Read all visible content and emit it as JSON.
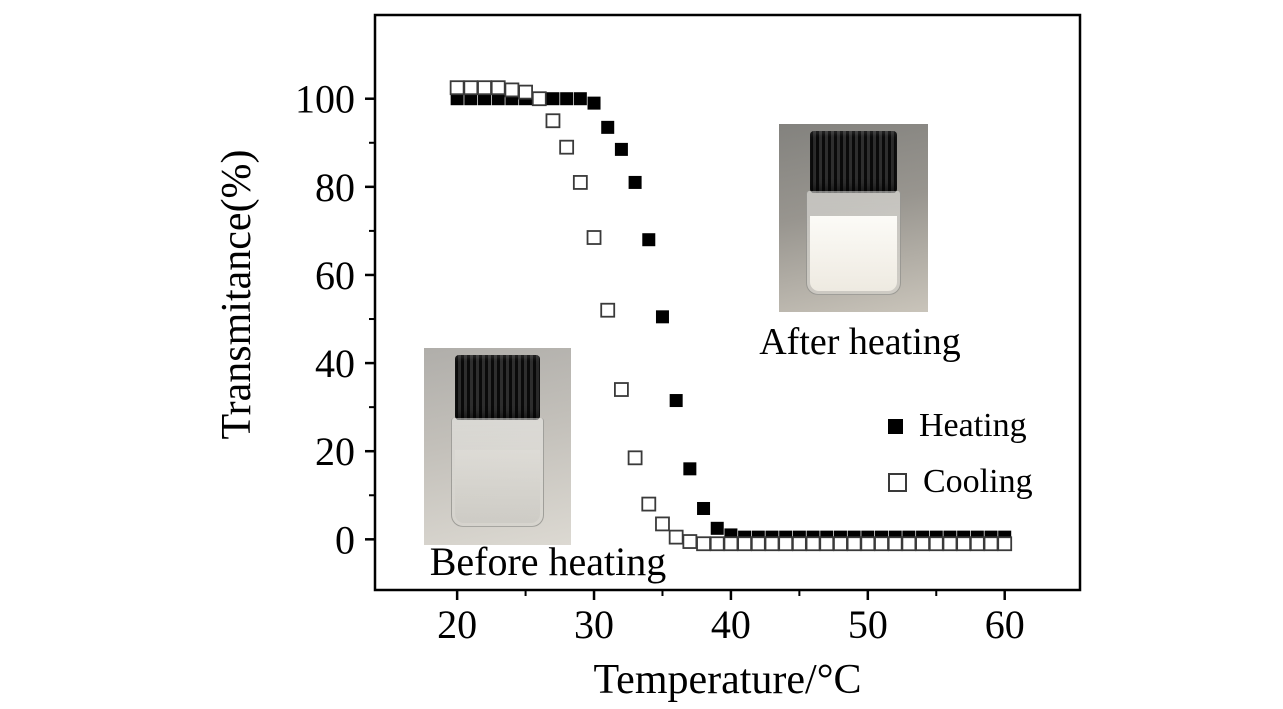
{
  "figure": {
    "axes": {
      "x_title": "Temperature/°C",
      "y_title": "Transmitance(%)"
    },
    "legend": {
      "items": [
        {
          "label": "Heating",
          "marker": "filled-square"
        },
        {
          "label": "Cooling",
          "marker": "open-square"
        }
      ]
    },
    "annotations": {
      "after_heating": "After heating",
      "before_heating": "Before heating"
    },
    "colors": {
      "heating_marker": "#000000",
      "cooling_marker_stroke": "#3a3a3a",
      "axis": "#000000"
    }
  },
  "chart_data": {
    "type": "scatter",
    "title": "",
    "xlabel": "Temperature/°C",
    "ylabel": "Transmitance(%)",
    "xlim": [
      14,
      65.5
    ],
    "ylim": [
      -11.5,
      119
    ],
    "x_ticks": [
      20,
      30,
      40,
      50,
      60
    ],
    "x_minor_ticks": [
      25,
      35,
      45,
      55
    ],
    "y_ticks": [
      0,
      20,
      40,
      60,
      80,
      100
    ],
    "y_minor_ticks": [
      10,
      30,
      50,
      70,
      90
    ],
    "grid": false,
    "legend_position": "inside-right-middle",
    "series": [
      {
        "name": "Heating",
        "marker": "filled-square",
        "color": "#000000",
        "x": [
          20,
          21,
          22,
          23,
          24,
          25,
          26,
          27,
          28,
          29,
          30,
          31,
          32,
          33,
          34,
          35,
          36,
          37,
          38,
          39,
          40,
          41,
          42,
          43,
          44,
          45,
          46,
          47,
          48,
          49,
          50,
          51,
          52,
          53,
          54,
          55,
          56,
          57,
          58,
          59,
          60
        ],
        "y": [
          100,
          100,
          100,
          100,
          100,
          100,
          100,
          100,
          100,
          100,
          99,
          93.5,
          88.5,
          81,
          68,
          50.5,
          31.5,
          16,
          7,
          2.5,
          1,
          0.5,
          0.5,
          0.5,
          0.5,
          0.5,
          0.5,
          0.5,
          0.5,
          0.5,
          0.5,
          0.5,
          0.5,
          0.5,
          0.5,
          0.5,
          0.5,
          0.5,
          0.5,
          0.5,
          0.5
        ]
      },
      {
        "name": "Cooling",
        "marker": "open-square",
        "color": "#3a3a3a",
        "x": [
          20,
          21,
          22,
          23,
          24,
          25,
          26,
          27,
          28,
          29,
          30,
          31,
          32,
          33,
          34,
          35,
          36,
          37,
          38,
          39,
          40,
          41,
          42,
          43,
          44,
          45,
          46,
          47,
          48,
          49,
          50,
          51,
          52,
          53,
          54,
          55,
          56,
          57,
          58,
          59,
          60
        ],
        "y": [
          102.5,
          102.5,
          102.5,
          102.5,
          102,
          101.5,
          100,
          95,
          89,
          81,
          68.5,
          52,
          34,
          18.5,
          8,
          3.5,
          0.5,
          -0.5,
          -1,
          -1,
          -1,
          -1,
          -1,
          -1,
          -1,
          -1,
          -1,
          -1,
          -1,
          -1,
          -1,
          -1,
          -1,
          -1,
          -1,
          -1,
          -1,
          -1,
          -1,
          -1,
          -1
        ]
      }
    ]
  }
}
